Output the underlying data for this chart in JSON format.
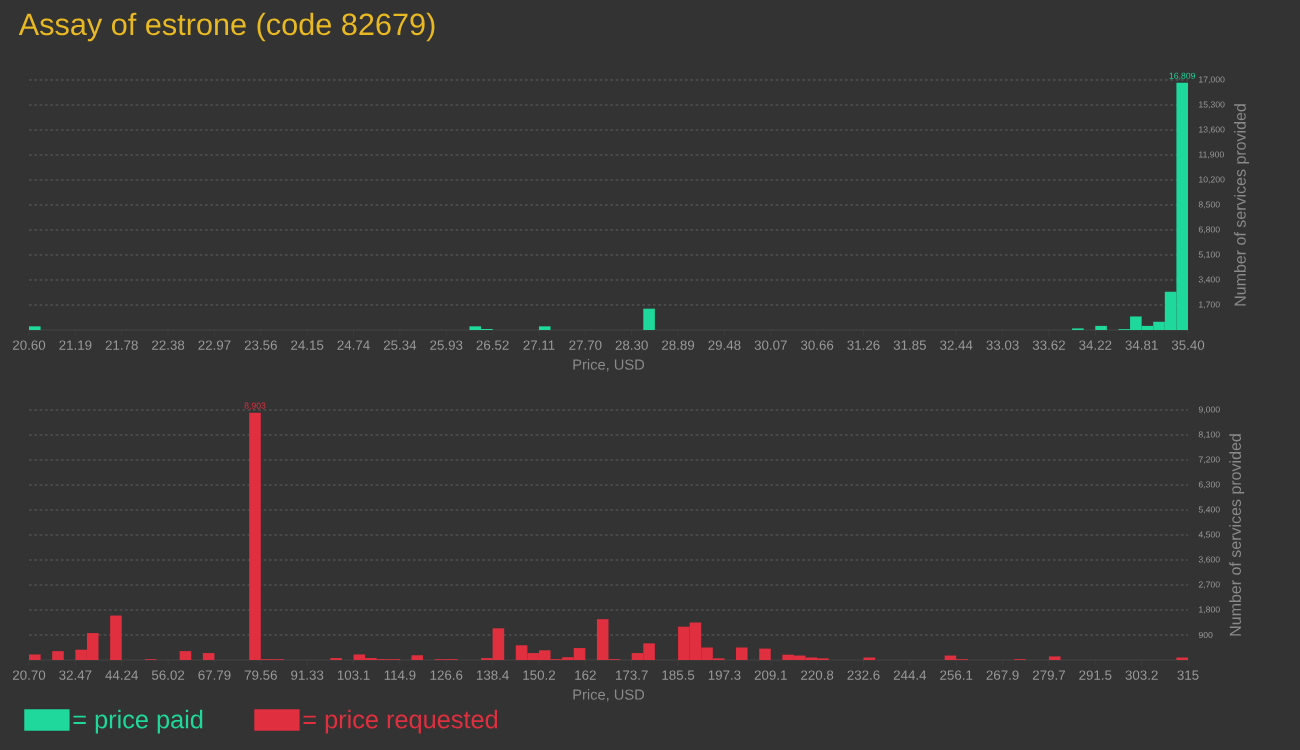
{
  "chart_data": [
    {
      "type": "histogram",
      "title": "Assay of estrone (code 82679)",
      "xlabel": "Price, USD",
      "ylabel": "Number of services provided",
      "grid": "y",
      "legend": "bottom left",
      "bins": [
        20.6,
        20.748,
        20.896,
        21.044,
        21.192,
        21.34,
        21.488,
        21.636,
        21.784,
        21.932,
        22.08,
        22.228,
        22.376,
        22.524,
        22.672,
        22.82,
        22.968,
        23.116,
        23.264,
        23.412,
        23.56,
        23.708,
        23.856,
        24.004,
        24.152,
        24.3,
        24.448,
        24.596,
        24.744,
        24.892,
        25.04,
        25.188,
        25.336,
        25.484,
        25.632,
        25.78,
        25.928,
        26.076,
        26.224,
        26.372,
        26.52,
        26.668,
        26.816,
        26.964,
        27.112,
        27.26,
        27.408,
        27.556,
        27.704,
        27.852,
        28.0,
        28.148,
        28.296,
        28.444,
        28.592,
        28.74,
        28.888,
        29.036,
        29.184,
        29.332,
        29.48,
        29.628,
        29.776,
        29.924,
        30.072,
        30.22,
        30.368,
        30.516,
        30.664,
        30.812,
        30.96,
        31.108,
        31.256,
        31.404,
        31.552,
        31.7,
        31.848,
        31.996,
        32.144,
        32.292,
        32.44,
        32.588,
        32.736,
        32.884,
        33.032,
        33.18,
        33.328,
        33.476,
        33.624,
        33.772,
        33.92,
        34.068,
        34.216,
        34.364,
        34.512,
        34.66,
        34.808,
        34.956,
        35.104,
        35.252,
        35.4
      ],
      "series": [
        {
          "name": "= price paid",
          "color": "#1ed99b",
          "values": [
            250,
            0,
            0,
            0,
            0,
            0,
            0,
            0,
            0,
            0,
            0,
            0,
            0,
            0,
            0,
            0,
            0,
            0,
            0,
            0,
            0,
            0,
            0,
            0,
            0,
            0,
            0,
            0,
            0,
            0,
            0,
            0,
            0,
            0,
            0,
            0,
            0,
            0,
            250,
            70,
            0,
            0,
            0,
            0,
            250,
            0,
            0,
            0,
            0,
            0,
            0,
            0,
            0,
            1450,
            0,
            0,
            0,
            0,
            0,
            0,
            0,
            0,
            0,
            0,
            0,
            0,
            0,
            0,
            0,
            0,
            0,
            0,
            0,
            0,
            0,
            0,
            0,
            0,
            0,
            0,
            0,
            0,
            0,
            0,
            0,
            0,
            0,
            0,
            0,
            0,
            110,
            0,
            280,
            0,
            60,
            920,
            280,
            560,
            2600,
            16809
          ],
          "value_labels": [
            null,
            null,
            null,
            null,
            null,
            null,
            null,
            null,
            null,
            null,
            null,
            null,
            null,
            null,
            null,
            null,
            null,
            null,
            null,
            null,
            null,
            null,
            null,
            null,
            null,
            null,
            null,
            null,
            null,
            null,
            null,
            null,
            null,
            null,
            null,
            null,
            null,
            null,
            null,
            null,
            null,
            null,
            null,
            null,
            null,
            null,
            null,
            null,
            null,
            null,
            null,
            null,
            null,
            null,
            null,
            null,
            null,
            null,
            null,
            null,
            null,
            null,
            null,
            null,
            null,
            null,
            null,
            null,
            null,
            null,
            null,
            null,
            null,
            null,
            null,
            null,
            null,
            null,
            null,
            null,
            null,
            null,
            null,
            null,
            null,
            null,
            null,
            null,
            null,
            null,
            null,
            null,
            null,
            null,
            null,
            null,
            null,
            null,
            null,
            "16,809"
          ]
        }
      ],
      "xlim": [
        20.6,
        35.4
      ],
      "xticks": [
        {
          "value": 20.6,
          "label": "20.60"
        },
        {
          "value": 21.192,
          "label": "21.19"
        },
        {
          "value": 21.784,
          "label": "21.78"
        },
        {
          "value": 22.376,
          "label": "22.38"
        },
        {
          "value": 22.968,
          "label": "22.97"
        },
        {
          "value": 23.56,
          "label": "23.56"
        },
        {
          "value": 24.152,
          "label": "24.15"
        },
        {
          "value": 24.744,
          "label": "24.74"
        },
        {
          "value": 25.336,
          "label": "25.34"
        },
        {
          "value": 25.928,
          "label": "25.93"
        },
        {
          "value": 26.52,
          "label": "26.52"
        },
        {
          "value": 27.112,
          "label": "27.11"
        },
        {
          "value": 27.704,
          "label": "27.70"
        },
        {
          "value": 28.296,
          "label": "28.30"
        },
        {
          "value": 28.888,
          "label": "28.89"
        },
        {
          "value": 29.48,
          "label": "29.48"
        },
        {
          "value": 30.072,
          "label": "30.07"
        },
        {
          "value": 30.664,
          "label": "30.66"
        },
        {
          "value": 31.256,
          "label": "31.26"
        },
        {
          "value": 31.848,
          "label": "31.85"
        },
        {
          "value": 32.44,
          "label": "32.44"
        },
        {
          "value": 33.032,
          "label": "33.03"
        },
        {
          "value": 33.624,
          "label": "33.62"
        },
        {
          "value": 34.216,
          "label": "34.22"
        },
        {
          "value": 34.808,
          "label": "34.81"
        },
        {
          "value": 35.4,
          "label": "35.40"
        }
      ],
      "ylim": [
        0,
        17000
      ],
      "yticks": [
        {
          "value": 1700,
          "label": "1,700"
        },
        {
          "value": 3400,
          "label": "3,400"
        },
        {
          "value": 5100,
          "label": "5,100"
        },
        {
          "value": 6800,
          "label": "6,800"
        },
        {
          "value": 8500,
          "label": "8,500"
        },
        {
          "value": 10200,
          "label": "10,200"
        },
        {
          "value": 11900,
          "label": "11,900"
        },
        {
          "value": 13600,
          "label": "13,600"
        },
        {
          "value": 15300,
          "label": "15,300"
        },
        {
          "value": 17000,
          "label": "17,000"
        }
      ]
    },
    {
      "type": "histogram",
      "xlabel": "Price, USD",
      "ylabel": "Number of services provided",
      "grid": "y",
      "legend": "bottom left",
      "bins": [
        20.7,
        23.643,
        26.586,
        29.529,
        32.472,
        35.415,
        38.358,
        41.301,
        44.244,
        47.187,
        50.13,
        53.073,
        56.016,
        58.959,
        61.902,
        64.845,
        67.788,
        70.731,
        73.674,
        76.617,
        79.56,
        82.503,
        85.446,
        88.389,
        91.332,
        94.275,
        97.218,
        100.161,
        103.104,
        106.047,
        108.99,
        111.933,
        114.876,
        117.819,
        120.762,
        123.705,
        126.648,
        129.591,
        132.534,
        135.477,
        138.42,
        141.363,
        144.306,
        147.249,
        150.192,
        153.135,
        156.078,
        159.021,
        161.964,
        164.907,
        167.85,
        170.793,
        173.736,
        176.679,
        179.622,
        182.565,
        185.508,
        188.451,
        191.394,
        194.337,
        197.28,
        200.223,
        203.166,
        206.109,
        209.052,
        211.995,
        214.938,
        217.881,
        220.824,
        223.767,
        226.71,
        229.653,
        232.596,
        235.539,
        238.482,
        241.425,
        244.368,
        247.311,
        250.254,
        253.197,
        256.14,
        259.083,
        262.026,
        264.969,
        267.912,
        270.855,
        273.798,
        276.741,
        279.684,
        282.627,
        285.57,
        288.513,
        291.456,
        294.399,
        297.342,
        300.285,
        303.228,
        306.171,
        309.114,
        312.057,
        315.0
      ],
      "series": [
        {
          "name": "= price requested",
          "color": "#e02f3f",
          "values": [
            200,
            0,
            320,
            0,
            370,
            970,
            0,
            1600,
            0,
            0,
            30,
            0,
            0,
            320,
            0,
            250,
            0,
            0,
            0,
            8903,
            30,
            30,
            0,
            0,
            0,
            0,
            70,
            0,
            200,
            70,
            30,
            30,
            0,
            170,
            0,
            30,
            30,
            0,
            0,
            70,
            1140,
            0,
            530,
            250,
            350,
            30,
            100,
            430,
            0,
            1470,
            30,
            0,
            250,
            600,
            0,
            0,
            1200,
            1350,
            450,
            60,
            0,
            450,
            0,
            410,
            0,
            190,
            160,
            90,
            60,
            0,
            0,
            0,
            90,
            0,
            0,
            0,
            0,
            0,
            0,
            160,
            30,
            0,
            0,
            0,
            0,
            30,
            0,
            0,
            130,
            0,
            0,
            0,
            0,
            0,
            0,
            0,
            0,
            0,
            0,
            90
          ],
          "value_labels": [
            null,
            null,
            null,
            null,
            null,
            null,
            null,
            null,
            null,
            null,
            null,
            null,
            null,
            null,
            null,
            null,
            null,
            null,
            null,
            "8,903",
            null,
            null,
            null,
            null,
            null,
            null,
            null,
            null,
            null,
            null,
            null,
            null,
            null,
            null,
            null,
            null,
            null,
            null,
            null,
            null,
            null,
            null,
            null,
            null,
            null,
            null,
            null,
            null,
            null,
            null,
            null,
            null,
            null,
            null,
            null,
            null,
            null,
            null,
            null,
            null,
            null,
            null,
            null,
            null,
            null,
            null,
            null,
            null,
            null,
            null,
            null,
            null,
            null,
            null,
            null,
            null,
            null,
            null,
            null,
            null,
            null,
            null,
            null,
            null,
            null,
            null,
            null,
            null,
            null,
            null,
            null,
            null,
            null,
            null,
            null,
            null,
            null,
            null,
            null,
            null
          ]
        }
      ],
      "xlim": [
        20.7,
        315
      ],
      "xticks": [
        {
          "value": 20.7,
          "label": "20.70"
        },
        {
          "value": 32.472,
          "label": "32.47"
        },
        {
          "value": 44.244,
          "label": "44.24"
        },
        {
          "value": 56.016,
          "label": "56.02"
        },
        {
          "value": 67.788,
          "label": "67.79"
        },
        {
          "value": 79.56,
          "label": "79.56"
        },
        {
          "value": 91.332,
          "label": "91.33"
        },
        {
          "value": 103.104,
          "label": "103.1"
        },
        {
          "value": 114.876,
          "label": "114.9"
        },
        {
          "value": 126.648,
          "label": "126.6"
        },
        {
          "value": 138.42,
          "label": "138.4"
        },
        {
          "value": 150.192,
          "label": "150.2"
        },
        {
          "value": 161.964,
          "label": "162"
        },
        {
          "value": 173.736,
          "label": "173.7"
        },
        {
          "value": 185.508,
          "label": "185.5"
        },
        {
          "value": 197.28,
          "label": "197.3"
        },
        {
          "value": 209.052,
          "label": "209.1"
        },
        {
          "value": 220.824,
          "label": "220.8"
        },
        {
          "value": 232.596,
          "label": "232.6"
        },
        {
          "value": 244.368,
          "label": "244.4"
        },
        {
          "value": 256.14,
          "label": "256.1"
        },
        {
          "value": 267.912,
          "label": "267.9"
        },
        {
          "value": 279.684,
          "label": "279.7"
        },
        {
          "value": 291.456,
          "label": "291.5"
        },
        {
          "value": 303.228,
          "label": "303.2"
        },
        {
          "value": 315,
          "label": "315"
        }
      ],
      "ylim": [
        0,
        9000
      ],
      "yticks": [
        {
          "value": 900,
          "label": "900"
        },
        {
          "value": 1800,
          "label": "1,800"
        },
        {
          "value": 2700,
          "label": "2,700"
        },
        {
          "value": 3600,
          "label": "3,600"
        },
        {
          "value": 4500,
          "label": "4,500"
        },
        {
          "value": 5400,
          "label": "5,400"
        },
        {
          "value": 6300,
          "label": "6,300"
        },
        {
          "value": 7200,
          "label": "7,200"
        },
        {
          "value": 8100,
          "label": "8,100"
        },
        {
          "value": 9000,
          "label": "9,000"
        }
      ]
    }
  ]
}
